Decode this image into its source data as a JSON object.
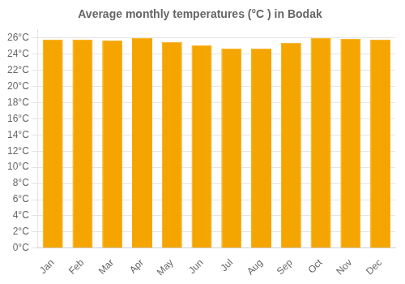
{
  "chart_data": {
    "type": "bar",
    "title": "Average monthly temperatures (°C ) in Bodak",
    "categories": [
      "Jan",
      "Feb",
      "Mar",
      "Apr",
      "May",
      "Jun",
      "Jul",
      "Aug",
      "Sep",
      "Oct",
      "Nov",
      "Dec"
    ],
    "values": [
      25.8,
      25.8,
      25.7,
      26.0,
      25.5,
      25.1,
      24.7,
      24.7,
      25.4,
      26.0,
      25.9,
      25.8
    ],
    "color": "#F5A500",
    "ylim": [
      0,
      27
    ],
    "yticks": [
      {
        "value": 0,
        "label": "0°C"
      },
      {
        "value": 2,
        "label": "2°C"
      },
      {
        "value": 4,
        "label": "4°C"
      },
      {
        "value": 6,
        "label": "6°C"
      },
      {
        "value": 8,
        "label": "8°C"
      },
      {
        "value": 10,
        "label": "10°C"
      },
      {
        "value": 12,
        "label": "12°C"
      },
      {
        "value": 14,
        "label": "14°C"
      },
      {
        "value": 16,
        "label": "16°C"
      },
      {
        "value": 18,
        "label": "18°C"
      },
      {
        "value": 20,
        "label": "20°C"
      },
      {
        "value": 22,
        "label": "22°C"
      },
      {
        "value": 24,
        "label": "24°C"
      },
      {
        "value": 26,
        "label": "26°C"
      }
    ],
    "grid": true
  }
}
